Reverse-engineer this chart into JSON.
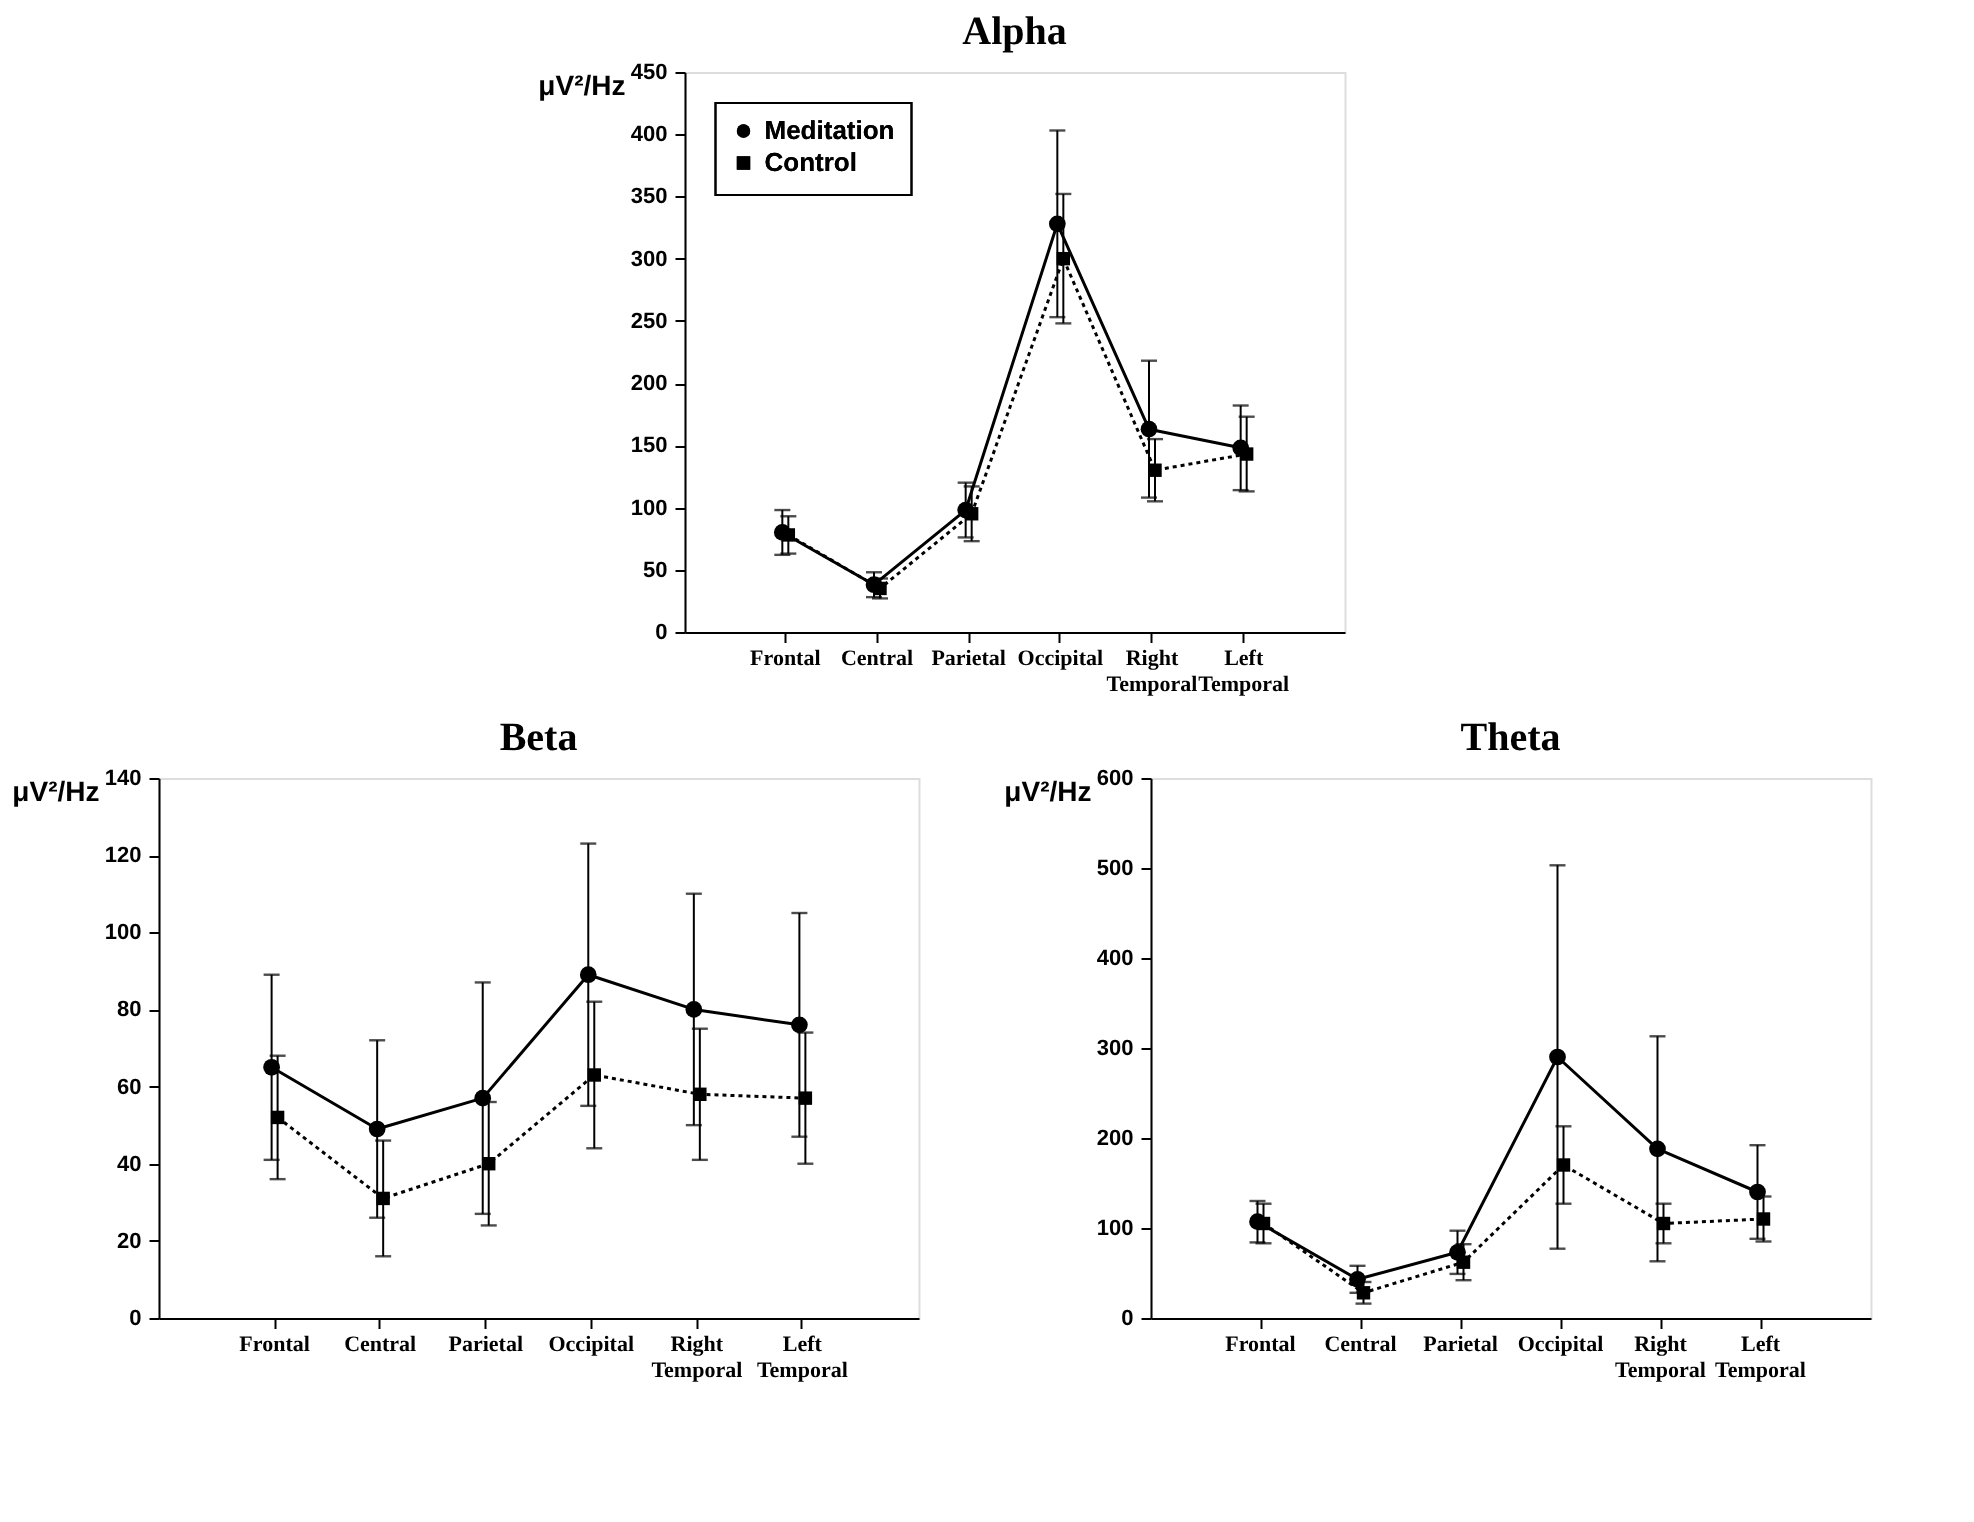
{
  "chart_data": [
    {
      "type": "line",
      "title": "Alpha",
      "ylabel": "μV²/Hz",
      "categories": [
        "Frontal",
        "Central",
        "Parietal",
        "Occipital",
        "Right Temporal",
        "Left Temporal"
      ],
      "ylim": [
        0,
        450
      ],
      "yticks": [
        0,
        50,
        100,
        150,
        200,
        250,
        300,
        350,
        400,
        450
      ],
      "grid": false,
      "legend": "top left",
      "series": [
        {
          "name": "Meditation",
          "color": "#000000",
          "marker": "circle",
          "line_style": "solid",
          "values": [
            80,
            38,
            98,
            328,
            163,
            148
          ],
          "errors": [
            18,
            10,
            22,
            75,
            55,
            34
          ]
        },
        {
          "name": "Control",
          "color": "#000000",
          "marker": "square",
          "line_style": "dotted",
          "values": [
            78,
            35,
            95,
            300,
            130,
            143
          ],
          "errors": [
            15,
            8,
            22,
            52,
            25,
            30
          ]
        }
      ]
    },
    {
      "type": "line",
      "title": "Beta",
      "ylabel": "μV²/Hz",
      "categories": [
        "Frontal",
        "Central",
        "Parietal",
        "Occipital",
        "Right Temporal",
        "Left Temporal"
      ],
      "ylim": [
        0,
        140
      ],
      "yticks": [
        0,
        20,
        40,
        60,
        80,
        100,
        120,
        140
      ],
      "grid": false,
      "series": [
        {
          "color": "#000000",
          "marker": "circle",
          "line_style": "solid",
          "values": [
            65,
            49,
            57,
            89,
            80,
            76
          ],
          "errors": [
            24,
            23,
            30,
            34,
            30,
            29
          ]
        },
        {
          "color": "#000000",
          "marker": "square",
          "line_style": "dotted",
          "values": [
            52,
            31,
            40,
            63,
            58,
            57
          ],
          "errors": [
            16,
            15,
            16,
            19,
            17,
            17
          ]
        }
      ]
    },
    {
      "type": "line",
      "title": "Theta",
      "ylabel": "μV²/Hz",
      "categories": [
        "Frontal",
        "Central",
        "Parietal",
        "Occipital",
        "Right Temporal",
        "Left Temporal"
      ],
      "ylim": [
        0,
        600
      ],
      "yticks": [
        0,
        100,
        200,
        300,
        400,
        500,
        600
      ],
      "grid": false,
      "series": [
        {
          "color": "#000000",
          "marker": "circle",
          "line_style": "solid",
          "values": [
            107,
            43,
            73,
            290,
            188,
            140
          ],
          "errors": [
            23,
            15,
            24,
            213,
            125,
            52
          ]
        },
        {
          "color": "#000000",
          "marker": "square",
          "line_style": "dotted",
          "values": [
            105,
            28,
            62,
            170,
            105,
            110
          ],
          "errors": [
            22,
            12,
            20,
            43,
            22,
            25
          ]
        }
      ]
    }
  ]
}
